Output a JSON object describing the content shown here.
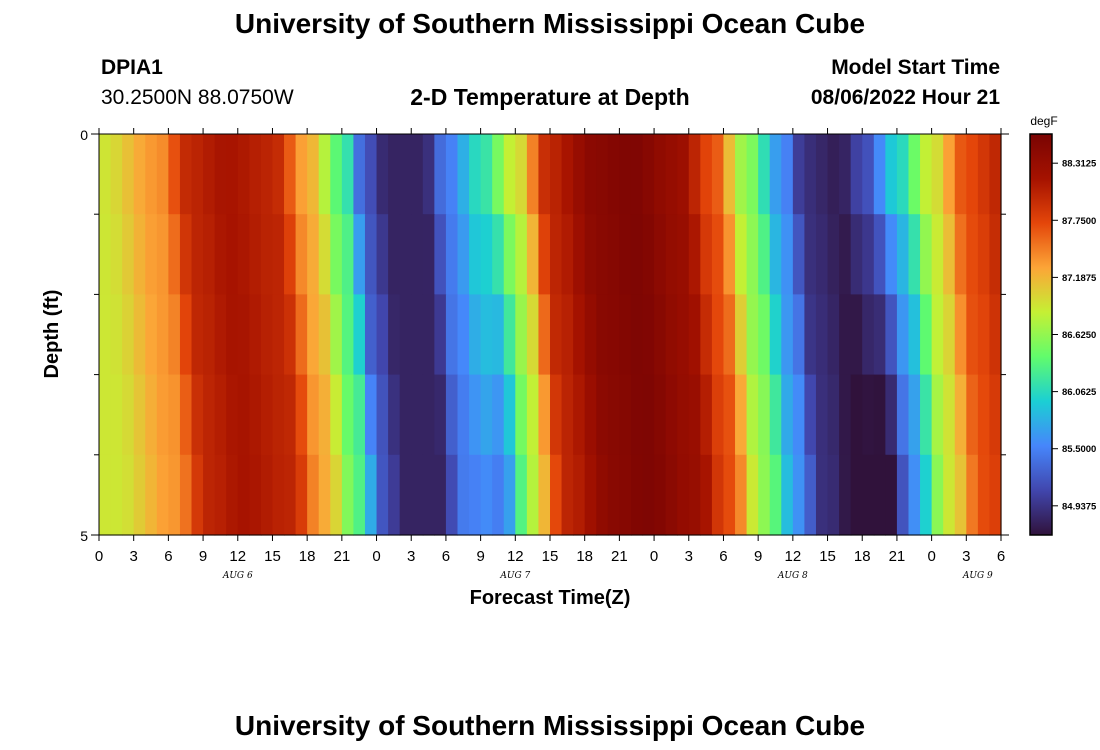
{
  "header": {
    "title": "University of Southern Mississippi Ocean Cube",
    "station_id": "DPIA1",
    "coords": "30.2500N  88.0750W",
    "plot_title": "2-D Temperature at Depth",
    "model_label": "Model Start Time",
    "model_time": "08/06/2022 Hour 21"
  },
  "footer_title": "University of Southern Mississippi Ocean Cube",
  "colors": {
    "cmap": [
      "#30123b",
      "#4146ad",
      "#4686fb",
      "#1bcfd4",
      "#61fc6c",
      "#c5f034",
      "#fca537",
      "#e4460a",
      "#a51200",
      "#7a0403"
    ]
  },
  "chart_data": {
    "type": "heatmap",
    "title": "2-D Temperature at Depth",
    "xlabel": "Forecast Time(Z)",
    "ylabel": "Depth (ft)",
    "ylim": [
      0,
      5
    ],
    "y_ticks": [
      "0",
      "5"
    ],
    "x_tick_labels": [
      "0",
      "3",
      "6",
      "9",
      "12",
      "15",
      "18",
      "21",
      "0",
      "3",
      "6",
      "9",
      "12",
      "15",
      "18",
      "21",
      "0",
      "3",
      "6",
      "9",
      "12",
      "15",
      "18",
      "21",
      "0",
      "3",
      "6"
    ],
    "date_labels": [
      {
        "label": "AUG 6",
        "hour_index": 12
      },
      {
        "label": "AUG 7",
        "hour_index": 36
      },
      {
        "label": "AUG 8",
        "hour_index": 60
      },
      {
        "label": "AUG 9",
        "hour_index": 76
      }
    ],
    "x_hours": [
      0,
      78
    ],
    "depth_levels": 5,
    "colorbar": {
      "unit": "degF",
      "min": 84.65,
      "max": 88.6,
      "tick_values": [
        84.9375,
        85.5,
        86.0625,
        86.625,
        87.1875,
        87.75,
        88.3125
      ],
      "tick_labels": [
        "84.9375",
        "85.5000",
        "86.0625",
        "86.6250",
        "87.1875",
        "87.7500",
        "88.3125"
      ]
    },
    "profile_nodes": [
      {
        "h": 0,
        "v": 86.9
      },
      {
        "h": 5,
        "v": 87.35
      },
      {
        "h": 8,
        "v": 88.0
      },
      {
        "h": 11,
        "v": 88.15
      },
      {
        "h": 15,
        "v": 88.0
      },
      {
        "h": 18,
        "v": 87.25
      },
      {
        "h": 21,
        "v": 86.3
      },
      {
        "h": 23,
        "v": 85.2
      },
      {
        "h": 25,
        "v": 84.8
      },
      {
        "h": 28,
        "v": 84.8
      },
      {
        "h": 30,
        "v": 85.45
      },
      {
        "h": 33,
        "v": 86.1
      },
      {
        "h": 36,
        "v": 86.9
      },
      {
        "h": 39,
        "v": 88.0
      },
      {
        "h": 43,
        "v": 88.45
      },
      {
        "h": 46,
        "v": 88.55
      },
      {
        "h": 50,
        "v": 88.3
      },
      {
        "h": 53,
        "v": 87.7
      },
      {
        "h": 56,
        "v": 86.6
      },
      {
        "h": 59,
        "v": 85.6
      },
      {
        "h": 61,
        "v": 84.9
      },
      {
        "h": 64,
        "v": 84.75
      },
      {
        "h": 66,
        "v": 85.1
      },
      {
        "h": 69,
        "v": 86.0
      },
      {
        "h": 72,
        "v": 86.9
      },
      {
        "h": 75,
        "v": 87.7
      },
      {
        "h": 78,
        "v": 88.0
      }
    ],
    "layer_time_lag_hours": [
      0,
      0.4,
      0.8,
      1.2,
      1.5
    ],
    "layer_cooling": [
      [
        [
          32,
          38
        ],
        [
          64,
          73
        ]
      ],
      [
        0,
        0.25,
        0.45,
        0.6,
        0.75
      ]
    ]
  }
}
